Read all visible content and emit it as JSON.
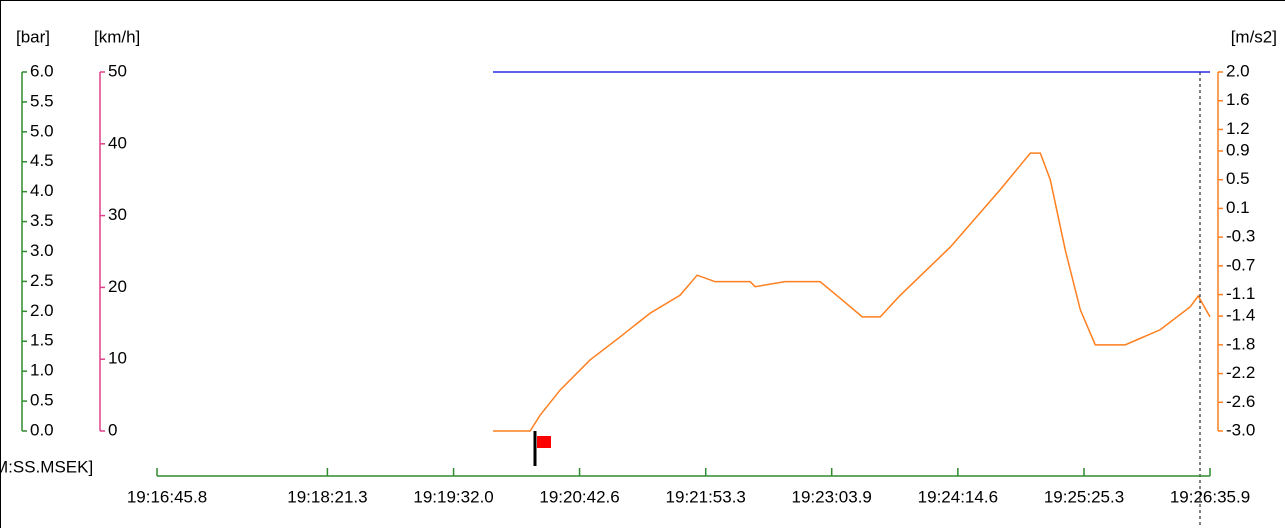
{
  "chart_data": {
    "type": "line",
    "x_label": "M:SS.MSEK]",
    "axes": [
      {
        "label": "[bar]",
        "color": "#2e8b2e",
        "lim": [
          0,
          6
        ],
        "ticks": [
          {
            "value": 0,
            "label": "0.0"
          },
          0.5,
          {
            "value": 1,
            "label": "1.0"
          },
          1.5,
          {
            "value": 2,
            "label": "2.0"
          },
          2.5,
          {
            "value": 3,
            "label": "3.0"
          },
          3.5,
          {
            "value": 4,
            "label": "4.0"
          },
          4.5,
          {
            "value": 5,
            "label": "5.0"
          },
          5.5,
          {
            "value": 6,
            "label": "6.0"
          }
        ]
      },
      {
        "label": "[km/h]",
        "color": "#e0408a",
        "lim": [
          0,
          50
        ],
        "ticks": [
          0,
          10,
          20,
          30,
          40,
          50
        ]
      }
    ],
    "y2_label": "[m/s2]",
    "y2_color": "#ff7f1e",
    "y2lim": [
      -3,
      2
    ],
    "y2ticks": [
      {
        "value": -3,
        "label": "-3.0"
      },
      -2.6,
      -2.2,
      -1.8,
      -1.4,
      -1.1,
      -0.7,
      -0.3,
      0.1,
      0.5,
      0.9,
      1.2,
      1.6,
      {
        "value": 2,
        "label": "2.0"
      }
    ],
    "xlim": [
      1005.8,
      1595.9
    ],
    "xticks": [
      {
        "value": 1005.8,
        "label": "19:16:45.8"
      },
      {
        "value": 1101.3,
        "label": "19:18:21.3"
      },
      {
        "value": 1172.0,
        "label": "19:19:32.0"
      },
      {
        "value": 1242.6,
        "label": "19:20:42.6"
      },
      {
        "value": 1313.3,
        "label": "19:21:53.3"
      },
      {
        "value": 1383.9,
        "label": "19:23:03.9"
      },
      {
        "value": 1454.6,
        "label": "19:24:14.6"
      },
      {
        "value": 1525.3,
        "label": "19:25:25.3"
      },
      {
        "value": 1595.9,
        "label": "19:26:35.9"
      }
    ],
    "x_color": "#2e8b2e",
    "series": [
      {
        "color": "#2a2ae8",
        "axis": "y2",
        "x": [
          1194.1,
          1595.9
        ],
        "values": [
          2,
          2
        ]
      },
      {
        "color": "#ff7f1e",
        "axis": "y2",
        "x": [
          1194.1,
          1214.9,
          1220.5,
          1231.7,
          1248.5,
          1265.3,
          1282.1,
          1298.9,
          1308.5,
          1318.6,
          1338.2,
          1341.0,
          1357.8,
          1377.4,
          1388.6,
          1401.0,
          1411.1,
          1422.3,
          1450.3,
          1478.3,
          1495.2,
          1500.8,
          1506.4,
          1514.8,
          1523.2,
          1531.6,
          1548.4,
          1568.0,
          1584.8,
          1589.3,
          1595.9
        ],
        "values": [
          -3.0,
          -3.0,
          -2.78,
          -2.43,
          -2.01,
          -1.69,
          -1.36,
          -1.11,
          -0.83,
          -0.92,
          -0.92,
          -0.99,
          -0.92,
          -0.92,
          -1.15,
          -1.41,
          -1.41,
          -1.11,
          -0.44,
          0.36,
          0.87,
          0.87,
          0.5,
          -0.48,
          -1.31,
          -1.8,
          -1.8,
          -1.59,
          -1.27,
          -1.12,
          -1.41
        ]
      }
    ]
  }
}
